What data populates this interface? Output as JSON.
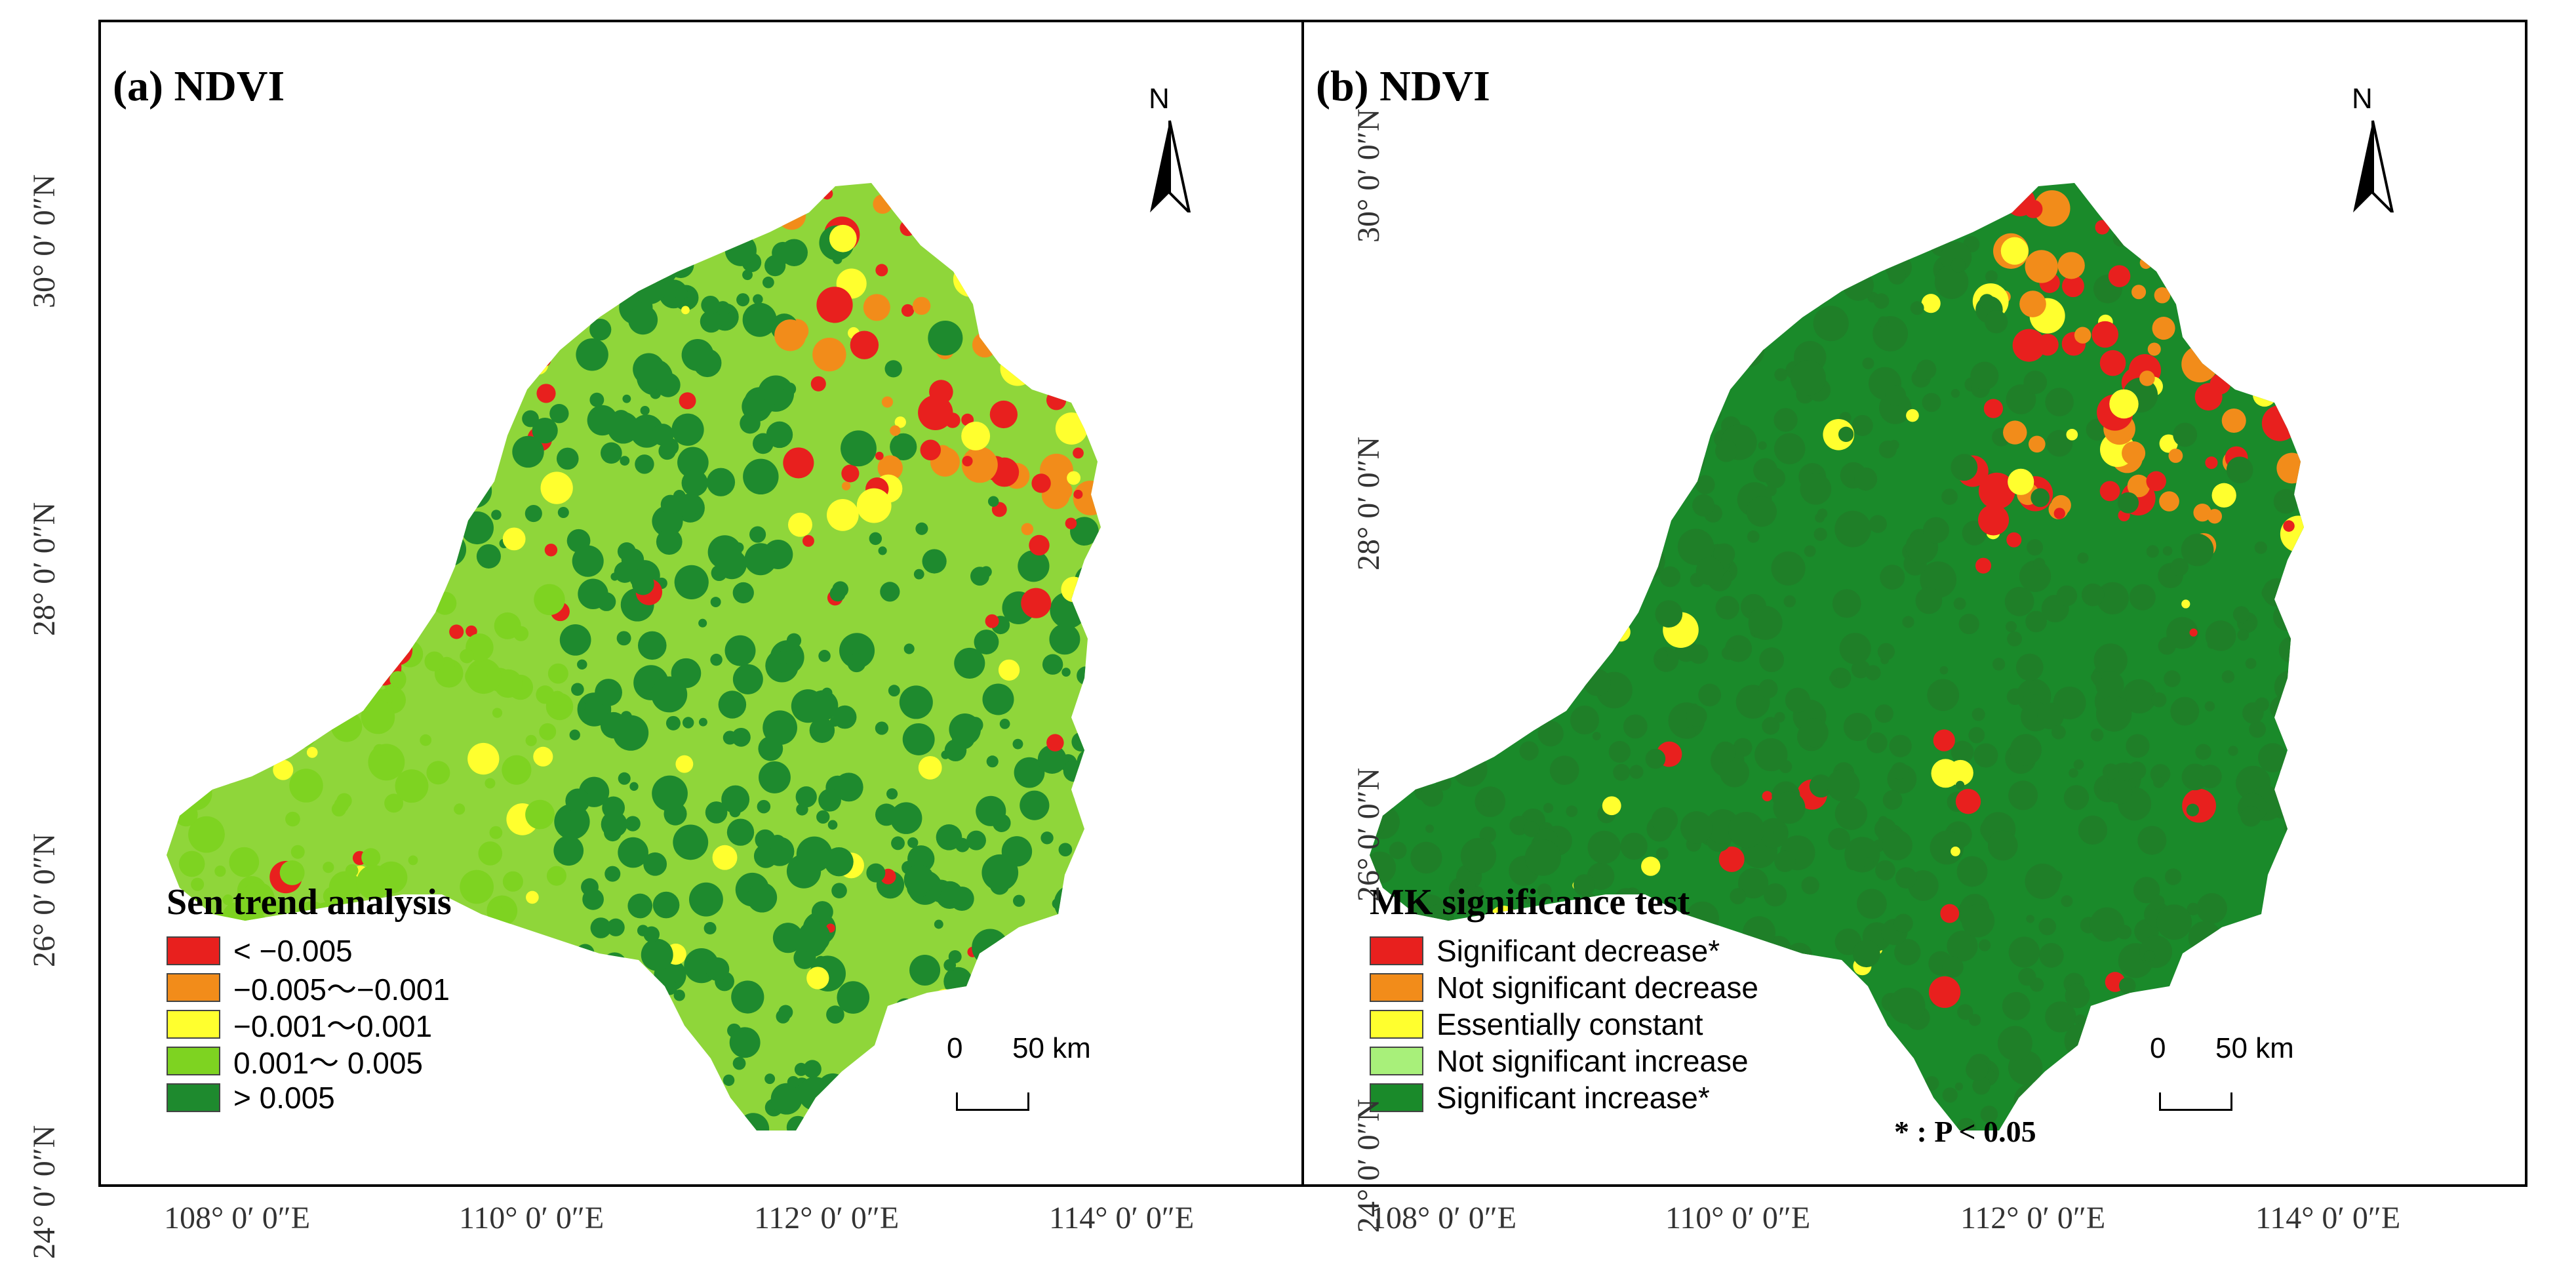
{
  "panels": [
    {
      "title": "(a) NDVI",
      "north_label": "N",
      "legend": {
        "title": "Sen trend analysis",
        "items": [
          {
            "label": "< −0.005",
            "color": "#e8201e"
          },
          {
            "label": "−0.005～−0.001",
            "color": "#f28c1a"
          },
          {
            "label": "−0.001～0.001",
            "color": "#ffff2e"
          },
          {
            "label": "0.001～ 0.005",
            "color": "#7ed321"
          },
          {
            "label": "> 0.005",
            "color": "#1e8a2e"
          }
        ]
      },
      "scalebar": {
        "zero": "0",
        "label": "50 km"
      },
      "base_color": "#8fd63a",
      "patch_color": "#1e8a2e"
    },
    {
      "title": "(b) NDVI",
      "north_label": "N",
      "legend": {
        "title": "MK significance test",
        "items": [
          {
            "label": "Significant decrease*",
            "color": "#e8201e"
          },
          {
            "label": "Not significant decrease",
            "color": "#f28c1a"
          },
          {
            "label": "Essentially constant",
            "color": "#ffff2e"
          },
          {
            "label": "Not significant increase",
            "color": "#a8f07a"
          },
          {
            "label": "Significant increase*",
            "color": "#1a8a2a"
          }
        ]
      },
      "scalebar": {
        "zero": "0",
        "label": "50 km"
      },
      "note": "* : P < 0.05",
      "base_color": "#1a8a2a",
      "patch_color": "#1f7f28"
    }
  ],
  "lat_ticks": [
    "30° 0′ 0″N",
    "28° 0′ 0″N",
    "26° 0′ 0″N",
    "24° 0′ 0″N"
  ],
  "lon_ticks": [
    "108° 0′ 0″E",
    "110° 0′ 0″E",
    "112° 0′ 0″E",
    "114° 0′ 0″E"
  ]
}
